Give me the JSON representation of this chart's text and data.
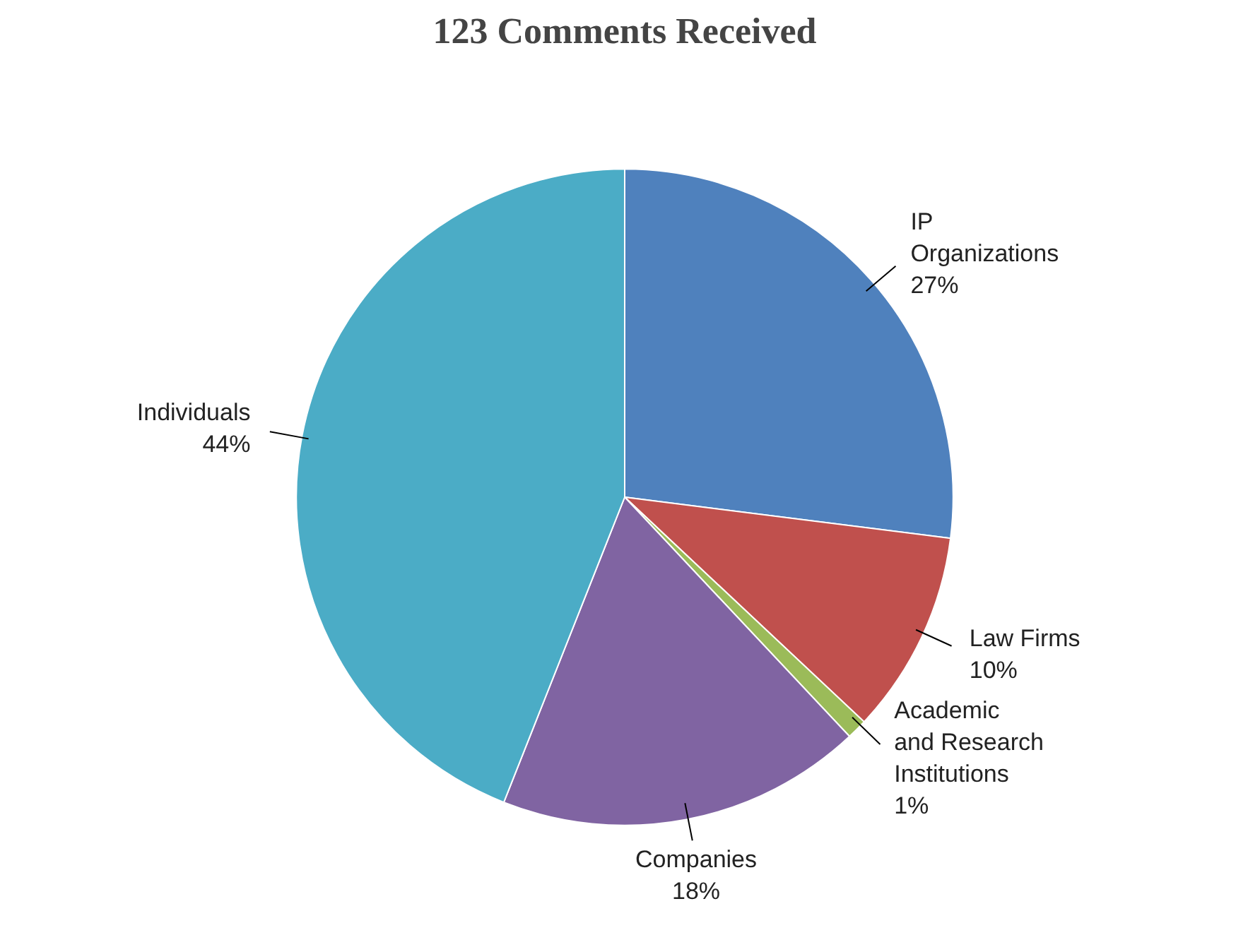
{
  "chart_data": {
    "type": "pie",
    "title": "123 Comments Received",
    "categories": [
      "IP\nOrganizations",
      "Law Firms",
      "Academic\nand Research\nInstitutions",
      "Companies",
      "Individuals"
    ],
    "values": [
      27,
      10,
      1,
      18,
      44
    ],
    "value_labels": [
      "27%",
      "10%",
      "1%",
      "18%",
      "44%"
    ],
    "colors": [
      "#4f81bd",
      "#c0504d",
      "#9bbb59",
      "#8064a2",
      "#4bacc6"
    ]
  }
}
